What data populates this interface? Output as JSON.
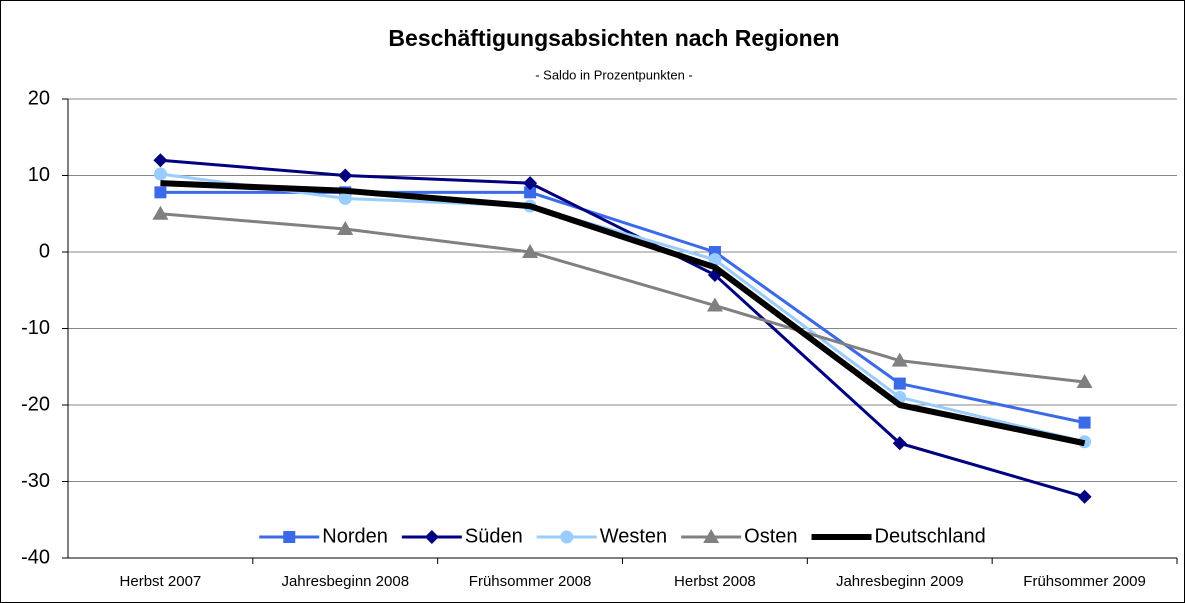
{
  "chart_data": {
    "type": "line",
    "title": "Beschäftigungsabsichten nach Regionen",
    "subtitle": "- Saldo in Prozentpunkten -",
    "categories": [
      "Herbst 2007",
      "Jahresbeginn 2008",
      "Frühsommer 2008",
      "Herbst 2008",
      "Jahresbeginn 2009",
      "Frühsommer 2009"
    ],
    "series": [
      {
        "name": "Norden",
        "color": "#3a6ae8",
        "marker": "square",
        "values": [
          7.8,
          7.8,
          7.8,
          0,
          -17.2,
          -22.3
        ]
      },
      {
        "name": "Süden",
        "color": "#000080",
        "marker": "diamond",
        "values": [
          12,
          10,
          9,
          -3,
          -25,
          -32
        ]
      },
      {
        "name": "Westen",
        "color": "#99ccff",
        "marker": "circle",
        "values": [
          10.2,
          7,
          6,
          -1,
          -19,
          -24.8
        ]
      },
      {
        "name": "Osten",
        "color": "#808080",
        "marker": "triangle",
        "values": [
          5,
          3,
          0,
          -7,
          -14.2,
          -17
        ]
      },
      {
        "name": "Deutschland",
        "color": "#000000",
        "marker": "none",
        "values": [
          9,
          8,
          6,
          -2,
          -20,
          -25
        ]
      }
    ],
    "ylim": [
      -40,
      20
    ],
    "yticks": [
      -40,
      -30,
      -20,
      -10,
      0,
      10,
      20
    ],
    "grid": true,
    "legend": "bottom"
  }
}
